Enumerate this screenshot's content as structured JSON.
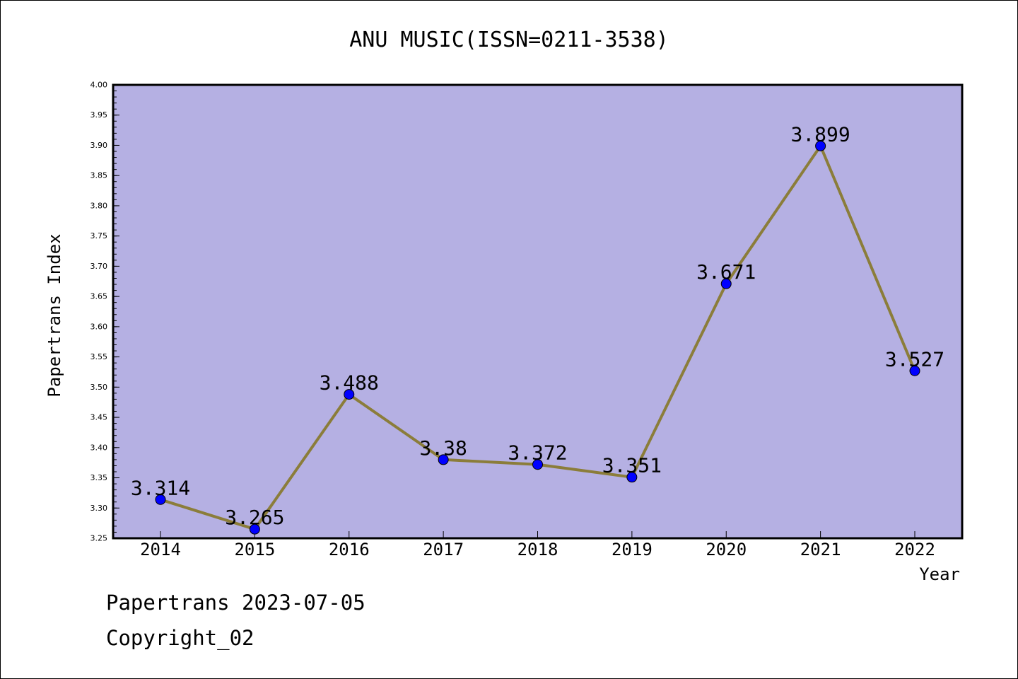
{
  "chart_data": {
    "type": "line",
    "title": "ANU MUSIC(ISSN=0211-3538)",
    "xlabel": "Year",
    "ylabel": "Papertrans Index",
    "x": [
      "2014",
      "2015",
      "2016",
      "2017",
      "2018",
      "2019",
      "2020",
      "2021",
      "2022"
    ],
    "series": [
      {
        "values": [
          3.314,
          3.265,
          3.488,
          3.38,
          3.372,
          3.351,
          3.671,
          3.899,
          3.527
        ],
        "labels": [
          "3.314",
          "3.265",
          "3.488",
          "3.38",
          "3.372",
          "3.351",
          "3.671",
          "3.899",
          "3.527"
        ]
      }
    ],
    "ylim": [
      3.25,
      4.0
    ],
    "yticks": [
      "3.25",
      "3.30",
      "3.35",
      "3.40",
      "3.45",
      "3.50",
      "3.55",
      "3.60",
      "3.65",
      "3.70",
      "3.75",
      "3.80",
      "3.85",
      "3.90",
      "3.95",
      "4.00"
    ],
    "grid": false,
    "legend": "none",
    "colors": {
      "plot_background": "#b5b0e3",
      "line": "#8b7d3a",
      "marker": "#0000ff"
    }
  },
  "footer": {
    "line1": "Papertrans 2023-07-05",
    "line2": "Copyright_02"
  }
}
